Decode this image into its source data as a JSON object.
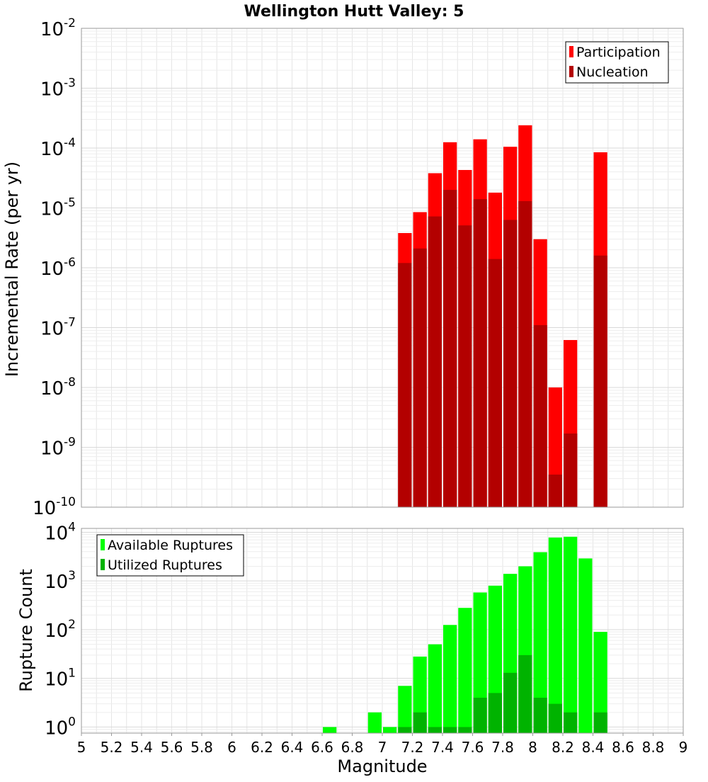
{
  "chart_data": [
    {
      "type": "bar",
      "title": "Wellington Hutt Valley: 5",
      "xlabel": "",
      "ylabel": "Incremental Rate (per yr)",
      "y_scale": "log",
      "ylim": [
        1e-10,
        0.01
      ],
      "xlim": [
        5,
        9
      ],
      "bin_width": 0.1,
      "grid": true,
      "legend_position": "top-right",
      "y_tick_labels": [
        {
          "base": "10",
          "exp": "-10",
          "value": 1e-10
        },
        {
          "base": "10",
          "exp": "-9",
          "value": 1e-09
        },
        {
          "base": "10",
          "exp": "-8",
          "value": 1e-08
        },
        {
          "base": "10",
          "exp": "-7",
          "value": 1e-07
        },
        {
          "base": "10",
          "exp": "-6",
          "value": 1e-06
        },
        {
          "base": "10",
          "exp": "-5",
          "value": 1e-05
        },
        {
          "base": "10",
          "exp": "-4",
          "value": 0.0001
        },
        {
          "base": "10",
          "exp": "-3",
          "value": 0.001
        },
        {
          "base": "10",
          "exp": "-2",
          "value": 0.01
        }
      ],
      "series": [
        {
          "name": "Participation",
          "color": "#ff0000",
          "x": [
            7.15,
            7.25,
            7.35,
            7.45,
            7.55,
            7.65,
            7.75,
            7.85,
            7.95,
            8.05,
            8.15,
            8.25,
            8.45
          ],
          "values": [
            3.8e-06,
            8.5e-06,
            3.8e-05,
            0.000125,
            4.3e-05,
            0.00014,
            1.8e-05,
            0.000105,
            0.00024,
            3e-06,
            1e-08,
            6.2e-08,
            8.5e-05
          ]
        },
        {
          "name": "Nucleation",
          "color": "#b30000",
          "x": [
            7.15,
            7.25,
            7.35,
            7.45,
            7.55,
            7.65,
            7.75,
            7.85,
            7.95,
            8.05,
            8.15,
            8.25,
            8.45
          ],
          "values": [
            1.2e-06,
            2.1e-06,
            7.2e-06,
            2e-05,
            5.1e-06,
            1.4e-05,
            1.4e-06,
            6.3e-06,
            1.3e-05,
            1.1e-07,
            3.5e-10,
            1.7e-09,
            1.6e-06
          ]
        }
      ]
    },
    {
      "type": "bar",
      "title": "",
      "xlabel": "Magnitude",
      "ylabel": "Rupture Count",
      "y_scale": "log",
      "ylim": [
        0.75,
        12000
      ],
      "xlim": [
        5,
        9
      ],
      "bin_width": 0.1,
      "grid": true,
      "legend_position": "top-left",
      "x_tick_labels": [
        "5",
        "5.2",
        "5.4",
        "5.6",
        "5.8",
        "6",
        "6.2",
        "6.4",
        "6.6",
        "6.8",
        "7",
        "7.2",
        "7.4",
        "7.6",
        "7.8",
        "8",
        "8.2",
        "8.4",
        "8.6",
        "8.8",
        "9"
      ],
      "y_tick_labels": [
        {
          "base": "10",
          "exp": "0",
          "value": 1
        },
        {
          "base": "10",
          "exp": "1",
          "value": 10
        },
        {
          "base": "10",
          "exp": "2",
          "value": 100
        },
        {
          "base": "10",
          "exp": "3",
          "value": 1000
        },
        {
          "base": "10",
          "exp": "4",
          "value": 10000
        }
      ],
      "series": [
        {
          "name": "Available Ruptures",
          "color": "#00ff00",
          "x": [
            6.65,
            6.95,
            7.05,
            7.15,
            7.25,
            7.35,
            7.45,
            7.55,
            7.65,
            7.75,
            7.85,
            7.95,
            8.05,
            8.15,
            8.25,
            8.35,
            8.45
          ],
          "values": [
            1,
            2,
            1,
            7,
            28,
            50,
            125,
            280,
            580,
            800,
            1400,
            2000,
            3900,
            7800,
            8100,
            2900,
            90
          ]
        },
        {
          "name": "Utilized Ruptures",
          "color": "#00b300",
          "x": [
            7.15,
            7.25,
            7.35,
            7.45,
            7.55,
            7.65,
            7.75,
            7.85,
            7.95,
            8.05,
            8.15,
            8.25,
            8.45
          ],
          "values": [
            1,
            2,
            1,
            1,
            1,
            4,
            5,
            13,
            30,
            4,
            3,
            2,
            2
          ]
        }
      ]
    }
  ]
}
